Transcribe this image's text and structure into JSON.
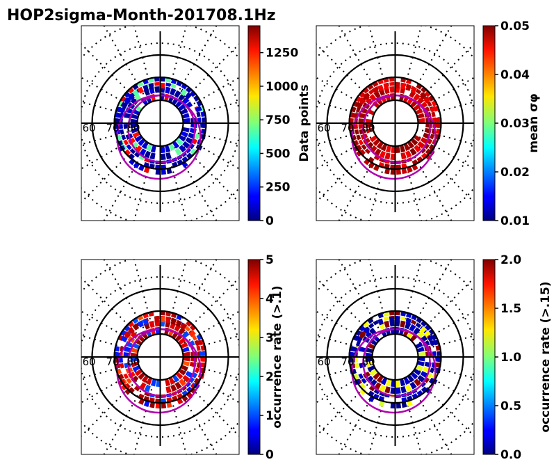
{
  "chart_data": {
    "type": "heatmap",
    "title": "HOP2sigma-Month-201708.1Hz",
    "panels": [
      {
        "id": "data-points",
        "colorbar_label": "Data points",
        "clim": [
          0,
          1450
        ],
        "ticks": [
          "0",
          "250",
          "500",
          "750",
          "1000",
          "1250"
        ],
        "tick_values": [
          0,
          250,
          500,
          750,
          1000,
          1250
        ],
        "pattern": "counts"
      },
      {
        "id": "mean-sigma",
        "colorbar_label": "mean σφ",
        "clim": [
          0.01,
          0.05
        ],
        "ticks": [
          "0.01",
          "0.02",
          "0.03",
          "0.04",
          "0.05"
        ],
        "tick_values": [
          0.01,
          0.02,
          0.03,
          0.04,
          0.05
        ],
        "pattern": "high"
      },
      {
        "id": "occurrence-01",
        "colorbar_label": "occurrence rate (>.1)",
        "clim": [
          0,
          5
        ],
        "ticks": [
          "0",
          "1",
          "2",
          "3",
          "4",
          "5"
        ],
        "tick_values": [
          0,
          1,
          2,
          3,
          4,
          5
        ],
        "pattern": "mixed"
      },
      {
        "id": "occurrence-015",
        "colorbar_label": "occurrence rate (>.15)",
        "clim": [
          0,
          2
        ],
        "ticks": [
          "0.0",
          "0.5",
          "1.0",
          "1.5",
          "2.0"
        ],
        "tick_values": [
          0,
          0.5,
          1.0,
          1.5,
          2.0
        ],
        "pattern": "low"
      }
    ],
    "polar_grid": {
      "solid_circles_deg": [
        60,
        70,
        80
      ],
      "dotted_circles_deg": [
        50,
        40
      ],
      "lat_labels": [
        "60",
        "70",
        "80"
      ]
    },
    "colormap": "jet",
    "overlay_color": "#b000b0"
  }
}
